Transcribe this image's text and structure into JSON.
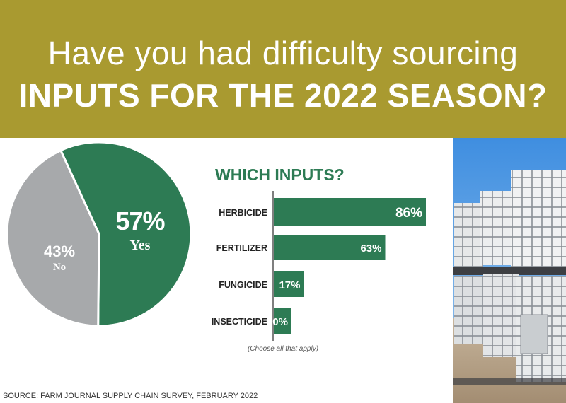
{
  "header": {
    "line1": "Have you had difficulty sourcing",
    "line2": "INPUTS FOR THE 2022 SEASON?"
  },
  "pie": {
    "yes_pct": "57%",
    "yes_label": "Yes",
    "no_pct": "43%",
    "no_label": "No"
  },
  "bars": {
    "title": "WHICH INPUTS?",
    "note": "(Choose all that apply)"
  },
  "source": "SOURCE: FARM JOURNAL SUPPLY CHAIN SURVEY, FEBRUARY 2022",
  "colors": {
    "banner": "#a99a30",
    "green": "#2d7b54",
    "gray": "#a7a9ab"
  },
  "photo": {
    "icon": "ibc-tote-tanks-photo"
  },
  "chart_data": [
    {
      "type": "pie",
      "title": "",
      "slices": [
        {
          "label": "Yes",
          "value": 57,
          "display": "57%"
        },
        {
          "label": "No",
          "value": 43,
          "display": "43%"
        }
      ]
    },
    {
      "type": "bar",
      "orientation": "horizontal",
      "title": "WHICH INPUTS?",
      "categories": [
        "HERBICIDE",
        "FERTILIZER",
        "FUNGICIDE",
        "INSECTICIDE"
      ],
      "values": [
        86,
        63,
        17,
        10
      ],
      "labels": [
        "86%",
        "63%",
        "17%",
        "10%"
      ],
      "xlim": [
        0,
        100
      ],
      "note": "(Choose all that apply)"
    }
  ]
}
